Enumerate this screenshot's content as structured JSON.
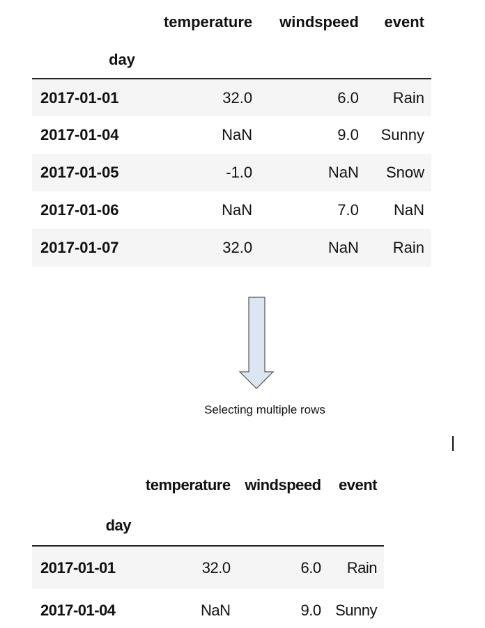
{
  "top_table": {
    "columns": [
      "temperature",
      "windspeed",
      "event"
    ],
    "index_name": "day",
    "rows": [
      {
        "day": "2017-01-01",
        "temperature": "32.0",
        "windspeed": "6.0",
        "event": "Rain"
      },
      {
        "day": "2017-01-04",
        "temperature": "NaN",
        "windspeed": "9.0",
        "event": "Sunny"
      },
      {
        "day": "2017-01-05",
        "temperature": "-1.0",
        "windspeed": "NaN",
        "event": "Snow"
      },
      {
        "day": "2017-01-06",
        "temperature": "NaN",
        "windspeed": "7.0",
        "event": "NaN"
      },
      {
        "day": "2017-01-07",
        "temperature": "32.0",
        "windspeed": "NaN",
        "event": "Rain"
      }
    ]
  },
  "arrow": {
    "direction": "down",
    "fill_color": "#dce6f2",
    "stroke_color": "#555555"
  },
  "caption": "Selecting multiple rows",
  "bottom_table": {
    "columns": [
      "temperature",
      "windspeed",
      "event"
    ],
    "index_name": "day",
    "rows": [
      {
        "day": "2017-01-01",
        "temperature": "32.0",
        "windspeed": "6.0",
        "event": "Rain"
      },
      {
        "day": "2017-01-04",
        "temperature": "NaN",
        "windspeed": "9.0",
        "event": "Sunny"
      }
    ]
  }
}
